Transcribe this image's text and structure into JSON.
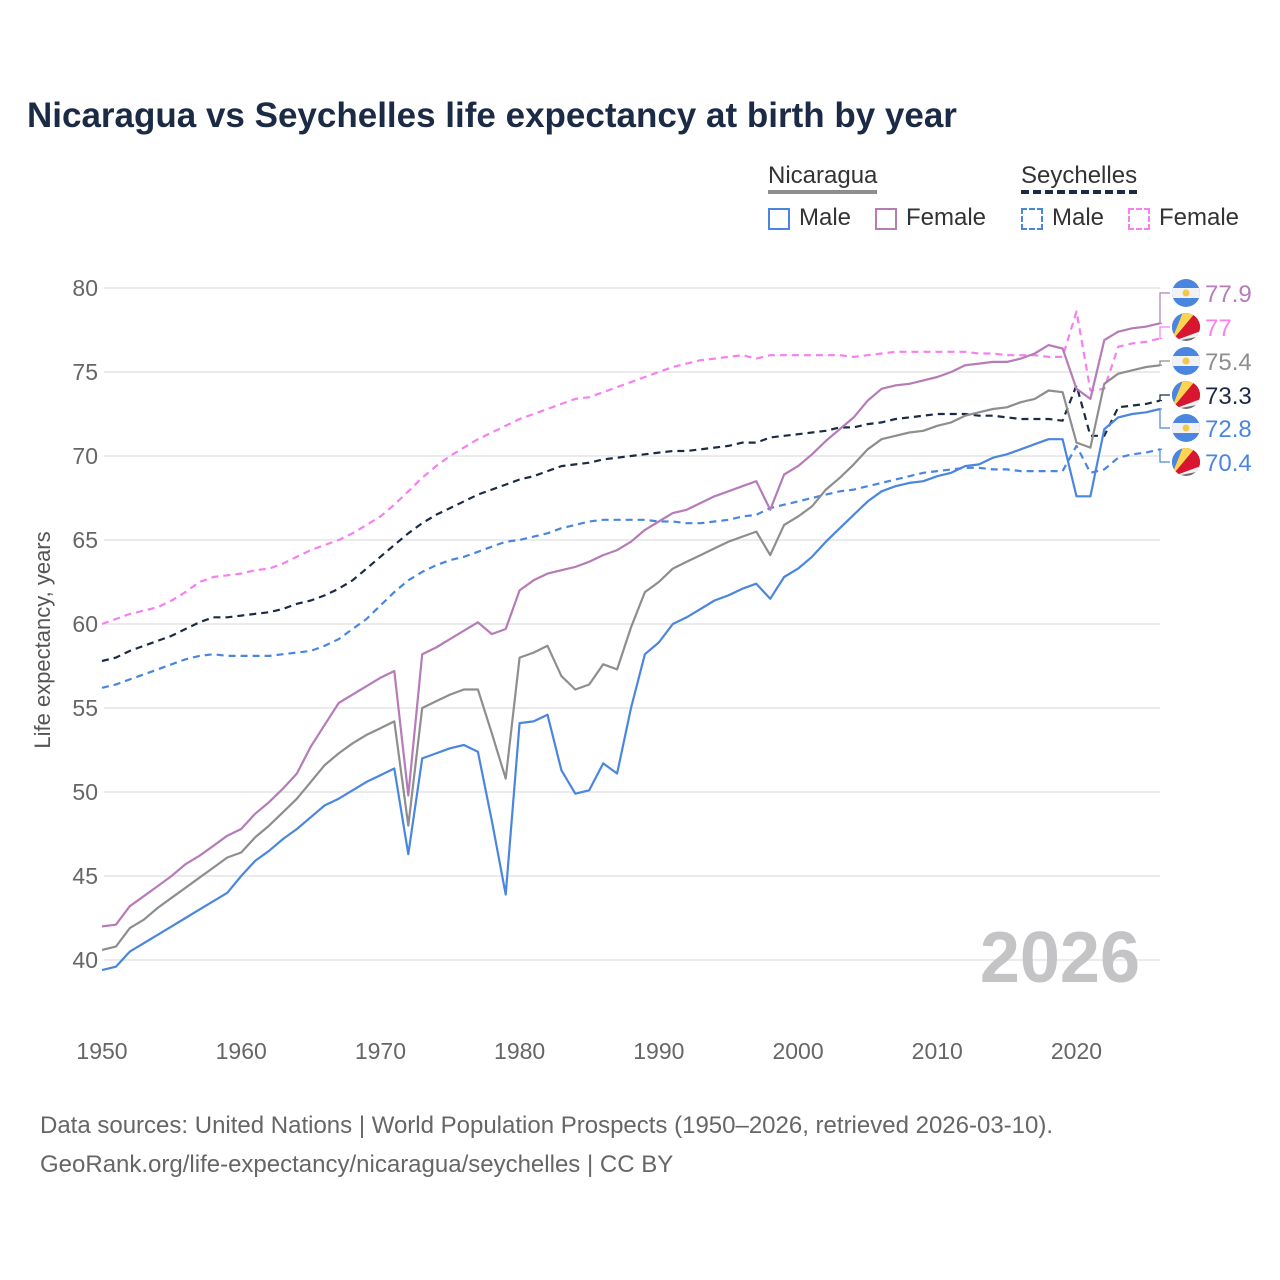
{
  "title": "Nicaragua vs Seychelles life expectancy at birth by year",
  "legend": {
    "nicaragua": "Nicaragua",
    "seychelles": "Seychelles",
    "male": "Male",
    "female": "Female"
  },
  "year_watermark": "2026",
  "source_line1": "Data sources: United Nations | World Population Prospects (1950–2026, retrieved 2026-03-10).",
  "source_line2": "GeoRank.org/life-expectancy/nicaragua/seychelles | CC BY",
  "chart_data": {
    "type": "line",
    "title": "Nicaragua vs Seychelles life expectancy at birth by year",
    "xlabel": "",
    "ylabel": "Life expectancy, years",
    "xlim": [
      1950,
      2026
    ],
    "ylim": [
      38,
      82
    ],
    "x_ticks": [
      1950,
      1960,
      1970,
      1980,
      1990,
      2000,
      2010,
      2020
    ],
    "y_ticks": [
      40,
      45,
      50,
      55,
      60,
      65,
      70,
      75,
      80
    ],
    "x_start": 1950,
    "grid": true,
    "series": [
      {
        "name": "Seychelles Female",
        "color": "#f77ff0",
        "dash": true,
        "end_label": "77",
        "values": [
          60.0,
          60.3,
          60.6,
          60.8,
          61.0,
          61.4,
          61.9,
          62.5,
          62.8,
          62.9,
          63.0,
          63.2,
          63.3,
          63.6,
          64.0,
          64.4,
          64.7,
          65.0,
          65.4,
          65.9,
          66.4,
          67.1,
          67.9,
          68.7,
          69.4,
          70.0,
          70.5,
          71.0,
          71.4,
          71.8,
          72.2,
          72.5,
          72.8,
          73.1,
          73.4,
          73.5,
          73.8,
          74.1,
          74.4,
          74.7,
          75.0,
          75.3,
          75.5,
          75.7,
          75.8,
          75.9,
          76.0,
          75.8,
          76.0,
          76.0,
          76.0,
          76.0,
          76.0,
          76.0,
          75.9,
          76.0,
          76.1,
          76.2,
          76.2,
          76.2,
          76.2,
          76.2,
          76.2,
          76.1,
          76.1,
          76.0,
          76.0,
          76.0,
          75.9,
          75.9,
          78.6,
          73.9,
          74.0,
          76.5,
          76.7,
          76.8,
          77.0
        ]
      },
      {
        "name": "Seychelles Total",
        "color": "#1c2b45",
        "dash": true,
        "end_label": "73.3",
        "values": [
          57.8,
          58.0,
          58.4,
          58.7,
          59.0,
          59.3,
          59.7,
          60.1,
          60.4,
          60.4,
          60.5,
          60.6,
          60.7,
          60.9,
          61.2,
          61.4,
          61.7,
          62.1,
          62.6,
          63.3,
          64.0,
          64.7,
          65.4,
          66.0,
          66.5,
          66.9,
          67.3,
          67.7,
          68.0,
          68.3,
          68.6,
          68.8,
          69.1,
          69.4,
          69.5,
          69.6,
          69.8,
          69.9,
          70.0,
          70.1,
          70.2,
          70.3,
          70.3,
          70.4,
          70.5,
          70.6,
          70.8,
          70.8,
          71.1,
          71.2,
          71.3,
          71.4,
          71.5,
          71.7,
          71.7,
          71.9,
          72.0,
          72.2,
          72.3,
          72.4,
          72.5,
          72.5,
          72.5,
          72.4,
          72.4,
          72.3,
          72.2,
          72.2,
          72.2,
          72.1,
          74.2,
          71.2,
          71.2,
          72.9,
          73.0,
          73.1,
          73.3
        ]
      },
      {
        "name": "Seychelles Male",
        "color": "#4a86e0",
        "dash": true,
        "end_label": "70.4",
        "values": [
          56.2,
          56.4,
          56.7,
          57.0,
          57.3,
          57.6,
          57.9,
          58.1,
          58.2,
          58.1,
          58.1,
          58.1,
          58.1,
          58.2,
          58.3,
          58.4,
          58.7,
          59.1,
          59.7,
          60.3,
          61.1,
          61.9,
          62.6,
          63.1,
          63.5,
          63.8,
          64.0,
          64.3,
          64.6,
          64.9,
          65.0,
          65.2,
          65.4,
          65.7,
          65.9,
          66.1,
          66.2,
          66.2,
          66.2,
          66.2,
          66.1,
          66.1,
          66.0,
          66.0,
          66.1,
          66.2,
          66.4,
          66.5,
          66.9,
          67.1,
          67.3,
          67.5,
          67.7,
          67.9,
          68.0,
          68.2,
          68.4,
          68.6,
          68.8,
          69.0,
          69.1,
          69.2,
          69.3,
          69.3,
          69.2,
          69.2,
          69.1,
          69.1,
          69.1,
          69.1,
          70.6,
          69.0,
          69.2,
          69.9,
          70.1,
          70.2,
          70.4
        ]
      },
      {
        "name": "Nicaragua Female",
        "color": "#b57cb8",
        "dash": false,
        "end_label": "77.9",
        "values": [
          42.0,
          42.1,
          43.2,
          43.8,
          44.4,
          45.0,
          45.7,
          46.2,
          46.8,
          47.4,
          47.8,
          48.7,
          49.4,
          50.2,
          51.1,
          52.7,
          54.0,
          55.3,
          55.8,
          56.3,
          56.8,
          57.2,
          49.8,
          58.2,
          58.6,
          59.1,
          59.6,
          60.1,
          59.4,
          59.7,
          62.0,
          62.6,
          63.0,
          63.2,
          63.4,
          63.7,
          64.1,
          64.4,
          64.9,
          65.6,
          66.1,
          66.6,
          66.8,
          67.2,
          67.6,
          67.9,
          68.2,
          68.5,
          66.8,
          68.9,
          69.4,
          70.1,
          70.9,
          71.6,
          72.3,
          73.3,
          74.0,
          74.2,
          74.3,
          74.5,
          74.7,
          75.0,
          75.4,
          75.5,
          75.6,
          75.6,
          75.8,
          76.1,
          76.6,
          76.4,
          74.0,
          73.4,
          76.9,
          77.4,
          77.6,
          77.7,
          77.9
        ]
      },
      {
        "name": "Nicaragua Total",
        "color": "#8e8e8e",
        "dash": false,
        "end_label": "75.4",
        "values": [
          40.6,
          40.8,
          41.9,
          42.4,
          43.1,
          43.7,
          44.3,
          44.9,
          45.5,
          46.1,
          46.4,
          47.3,
          48.0,
          48.8,
          49.6,
          50.6,
          51.6,
          52.3,
          52.9,
          53.4,
          53.8,
          54.2,
          48.0,
          55.0,
          55.4,
          55.8,
          56.1,
          56.1,
          53.5,
          50.8,
          58.0,
          58.3,
          58.7,
          56.9,
          56.1,
          56.4,
          57.6,
          57.3,
          59.8,
          61.9,
          62.5,
          63.3,
          63.7,
          64.1,
          64.5,
          64.9,
          65.2,
          65.5,
          64.1,
          65.9,
          66.4,
          67.0,
          68.0,
          68.7,
          69.5,
          70.4,
          71.0,
          71.2,
          71.4,
          71.5,
          71.8,
          72.0,
          72.4,
          72.6,
          72.8,
          72.9,
          73.2,
          73.4,
          73.9,
          73.8,
          70.8,
          70.5,
          74.3,
          74.9,
          75.1,
          75.3,
          75.4
        ]
      },
      {
        "name": "Nicaragua Male",
        "color": "#4a86e0",
        "dash": false,
        "end_label": "72.8",
        "values": [
          39.4,
          39.6,
          40.5,
          41.0,
          41.5,
          42.0,
          42.5,
          43.0,
          43.5,
          44.0,
          45.0,
          45.9,
          46.5,
          47.2,
          47.8,
          48.5,
          49.2,
          49.6,
          50.1,
          50.6,
          51.0,
          51.4,
          46.3,
          52.0,
          52.3,
          52.6,
          52.8,
          52.4,
          48.3,
          43.9,
          54.1,
          54.2,
          54.6,
          51.3,
          49.9,
          50.1,
          51.7,
          51.1,
          55.0,
          58.2,
          58.9,
          60.0,
          60.4,
          60.9,
          61.4,
          61.7,
          62.1,
          62.4,
          61.5,
          62.8,
          63.3,
          64.0,
          64.9,
          65.7,
          66.5,
          67.3,
          67.9,
          68.2,
          68.4,
          68.5,
          68.8,
          69.0,
          69.4,
          69.5,
          69.9,
          70.1,
          70.4,
          70.7,
          71.0,
          71.0,
          67.6,
          67.6,
          71.6,
          72.3,
          72.5,
          72.6,
          72.8
        ]
      }
    ],
    "end_labels_order": [
      "Nicaragua Female",
      "Seychelles Female",
      "Nicaragua Total",
      "Seychelles Total",
      "Nicaragua Male",
      "Seychelles Male"
    ]
  }
}
